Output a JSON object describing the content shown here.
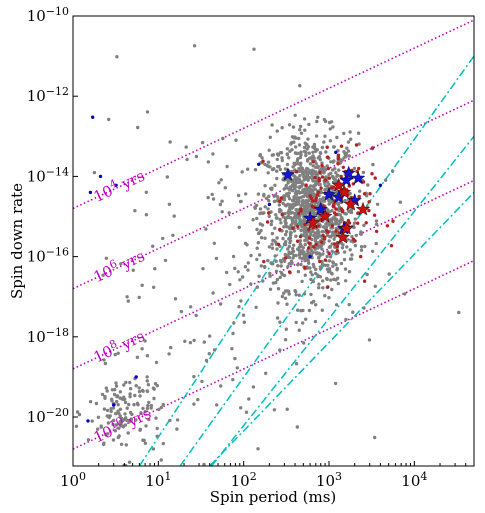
{
  "chart_data": {
    "type": "scatter",
    "title": "",
    "xlabel": "Spin period (ms)",
    "ylabel": "Spin down rate",
    "xscale": "log",
    "yscale": "log",
    "xlim": [
      1,
      50000
    ],
    "ylim": [
      6e-22,
      1e-10
    ],
    "grid": false,
    "x_ticks": [
      {
        "value": 1,
        "label": "10^0"
      },
      {
        "value": 10,
        "label": "10^1"
      },
      {
        "value": 100,
        "label": "10^2"
      },
      {
        "value": 1000,
        "label": "10^3"
      },
      {
        "value": 10000,
        "label": "10^4"
      }
    ],
    "y_ticks": [
      {
        "value": 1e-20,
        "label": "10^-20"
      },
      {
        "value": 1e-18,
        "label": "10^-18"
      },
      {
        "value": 1e-16,
        "label": "10^-16"
      },
      {
        "value": 1e-14,
        "label": "10^-14"
      },
      {
        "value": 1e-12,
        "label": "10^-12"
      },
      {
        "value": 1e-10,
        "label": "10^-10"
      }
    ],
    "age_lines": [
      {
        "age_label": "10^4 yrs",
        "log10_age_yr": 4,
        "color": "#bf00bf",
        "label_x": 1.9
      },
      {
        "age_label": "10^6 yrs",
        "log10_age_yr": 6,
        "color": "#bf00bf",
        "label_x": 1.9
      },
      {
        "age_label": "10^8 yrs",
        "log10_age_yr": 8,
        "color": "#bf00bf",
        "label_x": 1.9
      },
      {
        "age_label": "10^10 yrs",
        "log10_age_yr": 10,
        "color": "#bf00bf",
        "label_x": 1.9
      }
    ],
    "deathlines": [
      {
        "points": [
          [
            6,
            6e-22
          ],
          [
            1000,
            1e-14
          ]
        ],
        "color": "#00bfbf"
      },
      {
        "points": [
          [
            18,
            6e-22
          ],
          [
            50000,
            1e-11
          ]
        ],
        "color": "#00bfbf"
      },
      {
        "points": [
          [
            42,
            6e-22
          ],
          [
            50000,
            1e-13
          ]
        ],
        "color": "#00bfbf"
      },
      {
        "points": [
          [
            40,
            6e-22
          ],
          [
            50000,
            4e-15
          ]
        ],
        "color": "#00bfbf"
      }
    ],
    "series": [
      {
        "marker": "dot",
        "color": "#808080",
        "clusters": [
          {
            "n": 1150,
            "log_x": [
              2.78,
              0.28
            ],
            "log_y": [
              -14.85,
              0.95
            ]
          },
          {
            "n": 150,
            "log_x": [
              0.62,
              0.22
            ],
            "log_y": [
              -19.9,
              0.55
            ]
          },
          {
            "n": 170,
            "log_x": [
              1.85,
              0.9
            ],
            "log_y": [
              -16.5,
              2.2
            ]
          }
        ]
      },
      {
        "marker": "dot",
        "color": "#b22222",
        "clusters": [
          {
            "n": 140,
            "log_x": [
              2.95,
              0.28
            ],
            "log_y": [
              -14.9,
              0.8
            ]
          }
        ]
      },
      {
        "marker": "dot",
        "color": "#0000cc",
        "points": [
          [
            1.5,
            8e-21
          ],
          [
            1.6,
            4e-15
          ],
          [
            1.7,
            3e-13
          ],
          [
            2.1,
            1e-14
          ],
          [
            3.2,
            6e-15
          ],
          [
            5.5,
            1e-19
          ],
          [
            3.0,
            2e-20
          ],
          [
            150,
            2e-14
          ],
          [
            200,
            2e-15
          ],
          [
            600,
            1e-16
          ],
          [
            1200,
            4e-14
          ],
          [
            4000,
            6e-15
          ]
        ]
      },
      {
        "marker": "star",
        "color": "#1515d0",
        "points": [
          [
            330,
            1.1e-14
          ],
          [
            600,
            9e-16
          ],
          [
            800,
            1.5e-15
          ],
          [
            1000,
            3.5e-15
          ],
          [
            1300,
            3e-15
          ],
          [
            1600,
            8e-15
          ],
          [
            2200,
            9e-15
          ],
          [
            1700,
            1.2e-14
          ],
          [
            2000,
            2.5e-15
          ],
          [
            1500,
            5e-16
          ]
        ]
      },
      {
        "marker": "star",
        "color": "#cc1010",
        "points": [
          [
            650,
            7e-16
          ],
          [
            1300,
            6e-15
          ],
          [
            1500,
            4e-15
          ],
          [
            1450,
            3e-16
          ],
          [
            1600,
            5e-16
          ],
          [
            2500,
            1.5e-15
          ],
          [
            900,
            1e-15
          ],
          [
            1800,
            2e-15
          ]
        ]
      }
    ]
  }
}
